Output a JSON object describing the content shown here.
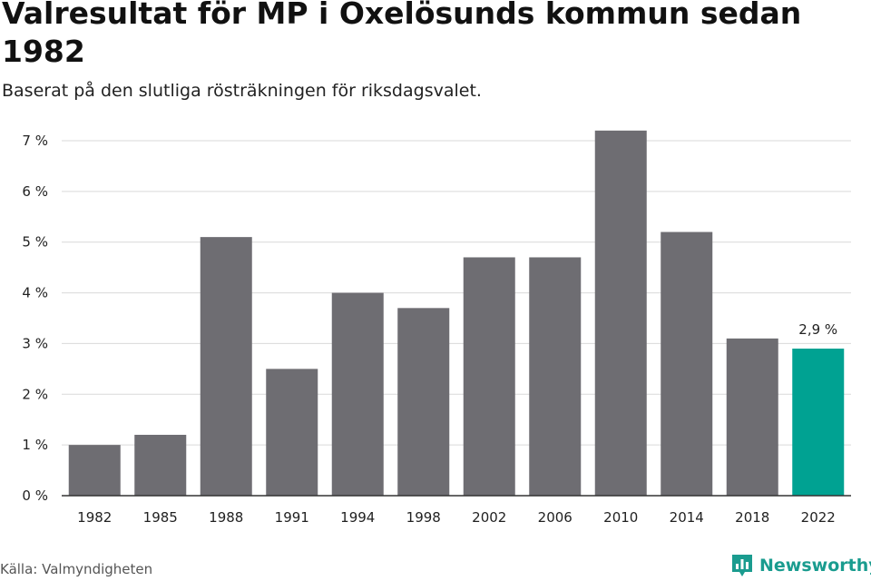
{
  "chart_data": {
    "type": "bar",
    "title": "Valresultat för MP i Oxelösunds kommun sedan 1982",
    "subtitle": "Baserat på den slutliga rösträkningen för riksdagsvalet.",
    "categories": [
      "1982",
      "1985",
      "1988",
      "1991",
      "1994",
      "1998",
      "2002",
      "2006",
      "2010",
      "2014",
      "2018",
      "2022"
    ],
    "values": [
      1.0,
      1.2,
      5.1,
      2.5,
      4.0,
      3.7,
      4.7,
      4.7,
      7.2,
      5.2,
      3.1,
      2.9
    ],
    "highlight_index": 11,
    "highlight_label": "2,9 %",
    "yticks": [
      "0 %",
      "1 %",
      "2 %",
      "3 %",
      "4 %",
      "5 %",
      "6 %",
      "7 %"
    ],
    "ylim": [
      0,
      7
    ],
    "grid": true,
    "colors": {
      "bar": "#6e6d72",
      "highlight": "#00a292",
      "grid": "#d9d9d9",
      "axis": "#333333"
    }
  },
  "source": "Källa: Valmyndigheten",
  "brand": {
    "name": "Newsworthy",
    "icon": "newsworthy-logo-icon",
    "color": "#1a9c8f"
  }
}
